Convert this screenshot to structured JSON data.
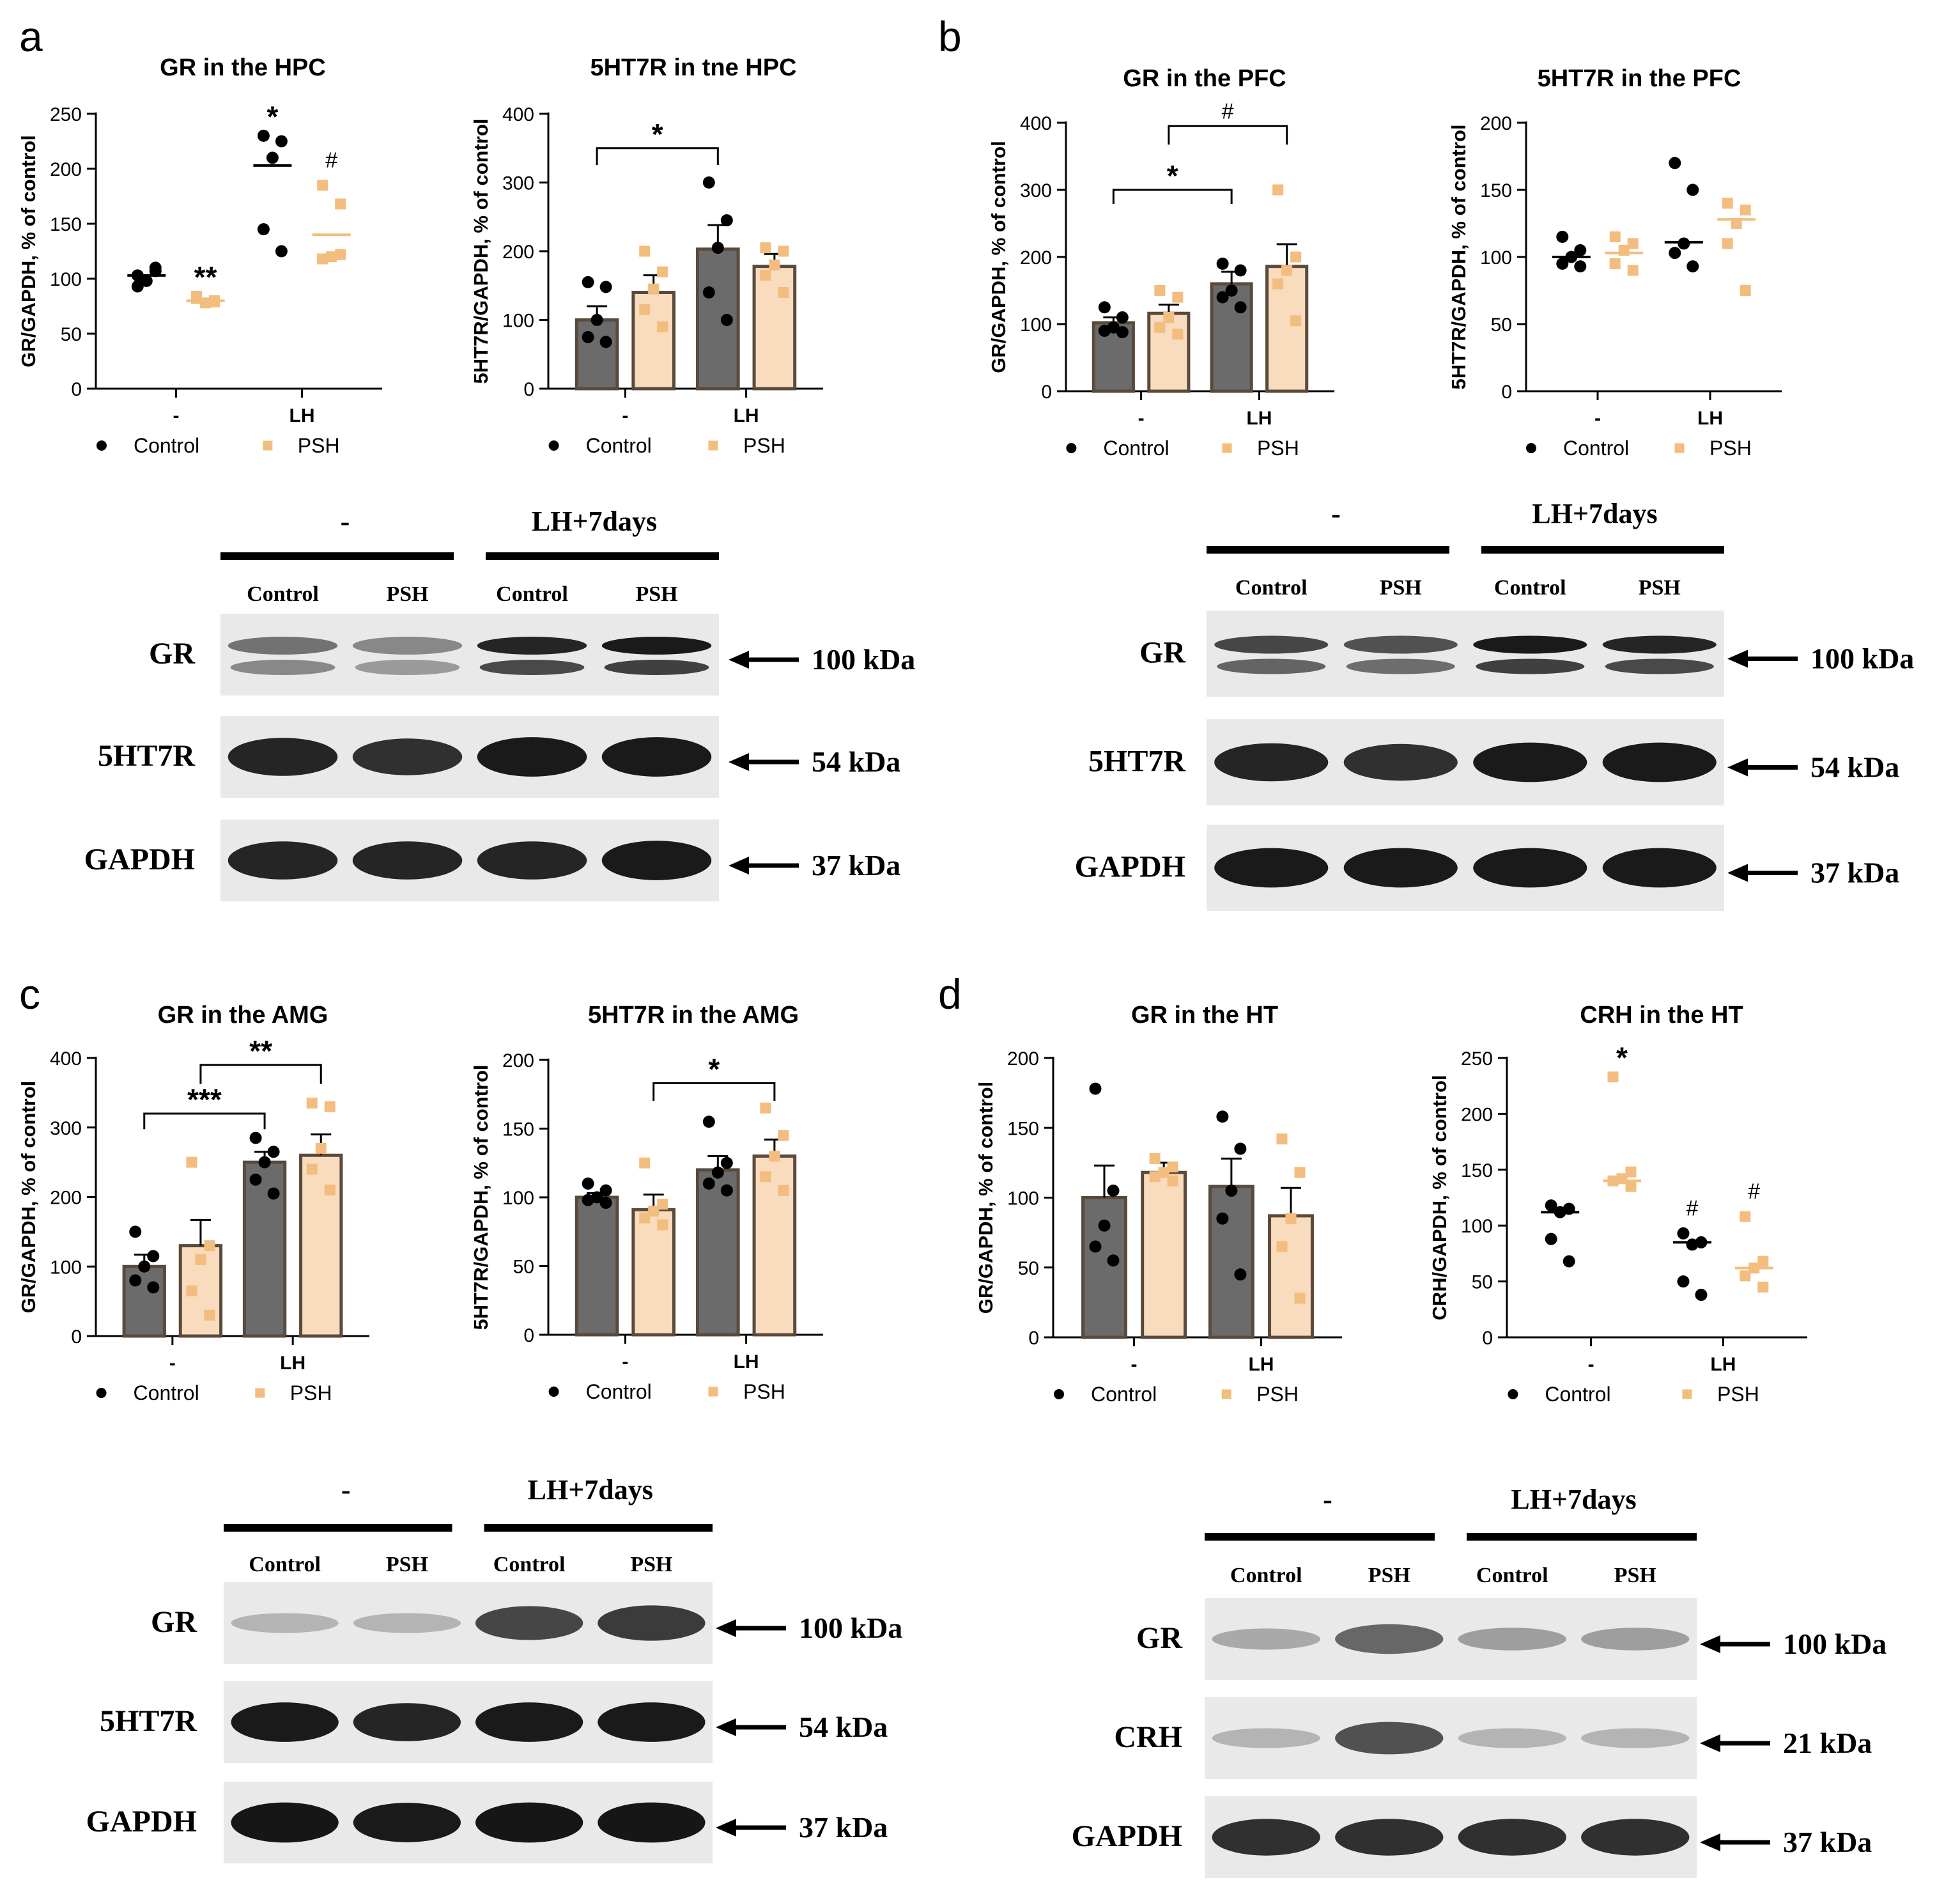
{
  "colors": {
    "control": "#000000",
    "psh": "#f2bd7e",
    "control_bar": "#6b6b6b",
    "psh_bar": "#f8dcbd",
    "bar_edge": "#5a4a3c"
  },
  "panel_letters": [
    "a",
    "b",
    "c",
    "d"
  ],
  "legend": {
    "control": "Control",
    "psh": "PSH"
  },
  "chart_data": [
    {
      "id": "a1",
      "type": "scatter",
      "title": "GR in the HPC",
      "ylabel": "GR/GAPDH, % of control",
      "ylim": [
        0,
        250
      ],
      "yticks": [
        0,
        50,
        100,
        150,
        200,
        250
      ],
      "categories": [
        "-",
        "LH"
      ],
      "series": [
        {
          "name": "Control",
          "values": [
            [
              103,
              107,
              98,
              93,
              110
            ],
            [
              230,
              225,
              210,
              145,
              125
            ]
          ],
          "mean": [
            103,
            203
          ],
          "sem": [
            0,
            0
          ]
        },
        {
          "name": "PSH",
          "values": [
            [
              82,
              80,
              78,
              84,
              79
            ],
            [
              185,
              168,
              120,
              118,
              122
            ]
          ],
          "mean": [
            80,
            140
          ],
          "sem": [
            0,
            0
          ]
        }
      ],
      "annotations": [
        {
          "text": "**",
          "series": 1,
          "group": 0
        },
        {
          "text": "*",
          "series": 0,
          "group": 1
        },
        {
          "text": "#",
          "series": 1,
          "group": 1
        }
      ],
      "brackets": []
    },
    {
      "id": "a2",
      "type": "bar",
      "title": "5HT7R in tne HPC",
      "ylabel": "5HT7R/GAPDH, % of control",
      "ylim": [
        0,
        400
      ],
      "yticks": [
        0,
        100,
        200,
        300,
        400
      ],
      "categories": [
        "-",
        "LH"
      ],
      "series": [
        {
          "name": "Control",
          "values": [
            [
              155,
              148,
              100,
              75,
              68
            ],
            [
              300,
              245,
              205,
              140,
              100
            ]
          ],
          "mean": [
            100,
            203
          ],
          "sem": [
            20,
            35
          ]
        },
        {
          "name": "PSH",
          "values": [
            [
              200,
              170,
              145,
              115,
              90
            ],
            [
              205,
              200,
              180,
              165,
              140
            ]
          ],
          "mean": [
            140,
            178
          ],
          "sem": [
            25,
            18
          ]
        }
      ],
      "annotations": [],
      "brackets": [
        {
          "from": [
            0,
            0
          ],
          "to": [
            1,
            0
          ],
          "y": 350,
          "text": "*"
        }
      ]
    },
    {
      "id": "b1",
      "type": "bar",
      "title": "GR in the PFC",
      "ylabel": "GR/GAPDH, % of control",
      "ylim": [
        0,
        400
      ],
      "yticks": [
        0,
        100,
        200,
        300,
        400
      ],
      "categories": [
        "-",
        "LH"
      ],
      "series": [
        {
          "name": "Control",
          "values": [
            [
              125,
              110,
              95,
              90,
              88
            ],
            [
              190,
              180,
              150,
              140,
              125
            ]
          ],
          "mean": [
            102,
            160
          ],
          "sem": [
            8,
            18
          ]
        },
        {
          "name": "PSH",
          "values": [
            [
              150,
              140,
              110,
              95,
              85
            ],
            [
              300,
              200,
              180,
              160,
              105
            ]
          ],
          "mean": [
            116,
            186
          ],
          "sem": [
            13,
            33
          ]
        }
      ],
      "annotations": [],
      "brackets": [
        {
          "from": [
            0,
            0
          ],
          "to": [
            1,
            0
          ],
          "y": 300,
          "text": "*"
        },
        {
          "from": [
            0,
            1
          ],
          "to": [
            1,
            1
          ],
          "y": 395,
          "text": "#"
        }
      ]
    },
    {
      "id": "b2",
      "type": "scatter",
      "title": "5HT7R in the PFC",
      "ylabel": "5HT7R/GAPDH, % of control",
      "ylim": [
        0,
        200
      ],
      "yticks": [
        0,
        50,
        100,
        150,
        200
      ],
      "categories": [
        "-",
        "LH"
      ],
      "series": [
        {
          "name": "Control",
          "values": [
            [
              115,
              105,
              100,
              95,
              93
            ],
            [
              170,
              150,
              110,
              103,
              93
            ]
          ],
          "mean": [
            100,
            111
          ],
          "sem": [
            0,
            0
          ]
        },
        {
          "name": "PSH",
          "values": [
            [
              115,
              110,
              105,
              95,
              90
            ],
            [
              140,
              135,
              125,
              110,
              75
            ]
          ],
          "mean": [
            103,
            128
          ],
          "sem": [
            0,
            0
          ]
        }
      ],
      "annotations": [],
      "brackets": []
    },
    {
      "id": "c1",
      "type": "bar",
      "title": "GR in the AMG",
      "ylabel": "GR/GAPDH, % of control",
      "ylim": [
        0,
        400
      ],
      "yticks": [
        0,
        100,
        200,
        300,
        400
      ],
      "categories": [
        "-",
        "LH"
      ],
      "series": [
        {
          "name": "Control",
          "values": [
            [
              150,
              115,
              100,
              80,
              70
            ],
            [
              285,
              265,
              250,
              225,
              205
            ]
          ],
          "mean": [
            100,
            250
          ],
          "sem": [
            17,
            15
          ]
        },
        {
          "name": "PSH",
          "values": [
            [
              250,
              130,
              110,
              65,
              30
            ],
            [
              335,
              330,
              270,
              240,
              210
            ]
          ],
          "mean": [
            130,
            260
          ],
          "sem": [
            37,
            30
          ]
        }
      ],
      "annotations": [],
      "brackets": [
        {
          "from": [
            0,
            0
          ],
          "to": [
            1,
            0
          ],
          "y": 320,
          "text": "***"
        },
        {
          "from": [
            0,
            1
          ],
          "to": [
            1,
            1
          ],
          "y": 390,
          "text": "**"
        }
      ]
    },
    {
      "id": "c2",
      "type": "bar",
      "title": "5HT7R in the AMG",
      "ylabel": "5HT7R/GAPDH, % of control",
      "ylim": [
        0,
        200
      ],
      "yticks": [
        0,
        50,
        100,
        150,
        200
      ],
      "categories": [
        "-",
        "LH"
      ],
      "series": [
        {
          "name": "Control",
          "values": [
            [
              110,
              105,
              100,
              98,
              96
            ],
            [
              155,
              125,
              118,
              110,
              105
            ]
          ],
          "mean": [
            100,
            120
          ],
          "sem": [
            3,
            10
          ]
        },
        {
          "name": "PSH",
          "values": [
            [
              125,
              95,
              90,
              85,
              80
            ],
            [
              165,
              145,
              130,
              115,
              105
            ]
          ],
          "mean": [
            91,
            130
          ],
          "sem": [
            11,
            12
          ]
        }
      ],
      "annotations": [],
      "brackets": [
        {
          "from": [
            0,
            1
          ],
          "to": [
            1,
            1
          ],
          "y": 183,
          "text": "*"
        }
      ]
    },
    {
      "id": "d1",
      "type": "bar",
      "title": "GR in the HT",
      "ylabel": "GR/GAPDH, % of control",
      "ylim": [
        0,
        200
      ],
      "yticks": [
        0,
        50,
        100,
        150,
        200
      ],
      "categories": [
        "-",
        "LH"
      ],
      "series": [
        {
          "name": "Control",
          "values": [
            [
              178,
              105,
              80,
              65,
              55
            ],
            [
              158,
              135,
              105,
              85,
              45
            ]
          ],
          "mean": [
            100,
            108
          ],
          "sem": [
            23,
            20
          ]
        },
        {
          "name": "PSH",
          "values": [
            [
              128,
              122,
              118,
              115,
              112
            ],
            [
              142,
              118,
              85,
              65,
              28
            ]
          ],
          "mean": [
            118,
            87
          ],
          "sem": [
            7,
            20
          ]
        }
      ],
      "annotations": [],
      "brackets": []
    },
    {
      "id": "d2",
      "type": "scatter",
      "title": "CRH in the HT",
      "ylabel": "CRH/GAPDH, % of control",
      "ylim": [
        0,
        250
      ],
      "yticks": [
        0,
        50,
        100,
        150,
        200,
        250
      ],
      "categories": [
        "-",
        "LH"
      ],
      "series": [
        {
          "name": "Control",
          "values": [
            [
              118,
              115,
              112,
              88,
              68
            ],
            [
              93,
              85,
              83,
              50,
              38
            ]
          ],
          "mean": [
            112,
            85
          ],
          "sem": [
            0,
            0
          ]
        },
        {
          "name": "PSH",
          "values": [
            [
              233,
              148,
              142,
              140,
              135
            ],
            [
              108,
              68,
              62,
              55,
              45
            ]
          ],
          "mean": [
            140,
            62
          ],
          "sem": [
            0,
            0
          ]
        }
      ],
      "annotations": [
        {
          "text": "*",
          "series": 1,
          "group": 0
        },
        {
          "text": "#",
          "series": 0,
          "group": 1
        },
        {
          "text": "#",
          "series": 1,
          "group": 1
        }
      ],
      "brackets": []
    }
  ],
  "blots": [
    {
      "id": "a",
      "groups": [
        "-",
        "LH+7days"
      ],
      "lanes": [
        "Control",
        "PSH",
        "Control",
        "PSH"
      ],
      "rows": [
        {
          "label": "GR",
          "kda": "100 kDa",
          "intensity": [
            0.55,
            0.45,
            0.9,
            0.95
          ],
          "double": true
        },
        {
          "label": "5HT7R",
          "kda": "54 kDa",
          "intensity": [
            0.9,
            0.85,
            0.95,
            0.95
          ],
          "double": false
        },
        {
          "label": "GAPDH",
          "kda": "37 kDa",
          "intensity": [
            0.9,
            0.9,
            0.9,
            0.95
          ],
          "double": false
        }
      ]
    },
    {
      "id": "b",
      "groups": [
        "-",
        "LH+7days"
      ],
      "lanes": [
        "Control",
        "PSH",
        "Control",
        "PSH"
      ],
      "rows": [
        {
          "label": "GR",
          "kda": "100 kDa",
          "intensity": [
            0.75,
            0.7,
            0.95,
            0.9
          ],
          "double": true
        },
        {
          "label": "5HT7R",
          "kda": "54 kDa",
          "intensity": [
            0.9,
            0.85,
            0.95,
            0.95
          ],
          "double": false
        },
        {
          "label": "GAPDH",
          "kda": "37 kDa",
          "intensity": [
            0.95,
            0.95,
            0.95,
            0.95
          ],
          "double": false
        }
      ]
    },
    {
      "id": "c",
      "groups": [
        "-",
        "LH+7days"
      ],
      "lanes": [
        "Control",
        "PSH",
        "Control",
        "PSH"
      ],
      "rows": [
        {
          "label": "GR",
          "kda": "100 kDa",
          "intensity": [
            0.25,
            0.25,
            0.75,
            0.8
          ],
          "double": false
        },
        {
          "label": "5HT7R",
          "kda": "54 kDa",
          "intensity": [
            0.95,
            0.9,
            0.95,
            0.95
          ],
          "double": false
        },
        {
          "label": "GAPDH",
          "kda": "37 kDa",
          "intensity": [
            0.97,
            0.95,
            0.97,
            0.97
          ],
          "double": false
        }
      ]
    },
    {
      "id": "d",
      "groups": [
        "-",
        "LH+7days"
      ],
      "lanes": [
        "Control",
        "PSH",
        "Control",
        "PSH"
      ],
      "rows": [
        {
          "label": "GR",
          "kda": "100 kDa",
          "intensity": [
            0.3,
            0.6,
            0.35,
            0.35
          ],
          "double": false
        },
        {
          "label": "CRH",
          "kda": "21 kDa",
          "intensity": [
            0.25,
            0.7,
            0.25,
            0.25
          ],
          "double": false
        },
        {
          "label": "GAPDH",
          "kda": "37 kDa",
          "intensity": [
            0.85,
            0.85,
            0.85,
            0.85
          ],
          "double": false
        }
      ]
    }
  ]
}
